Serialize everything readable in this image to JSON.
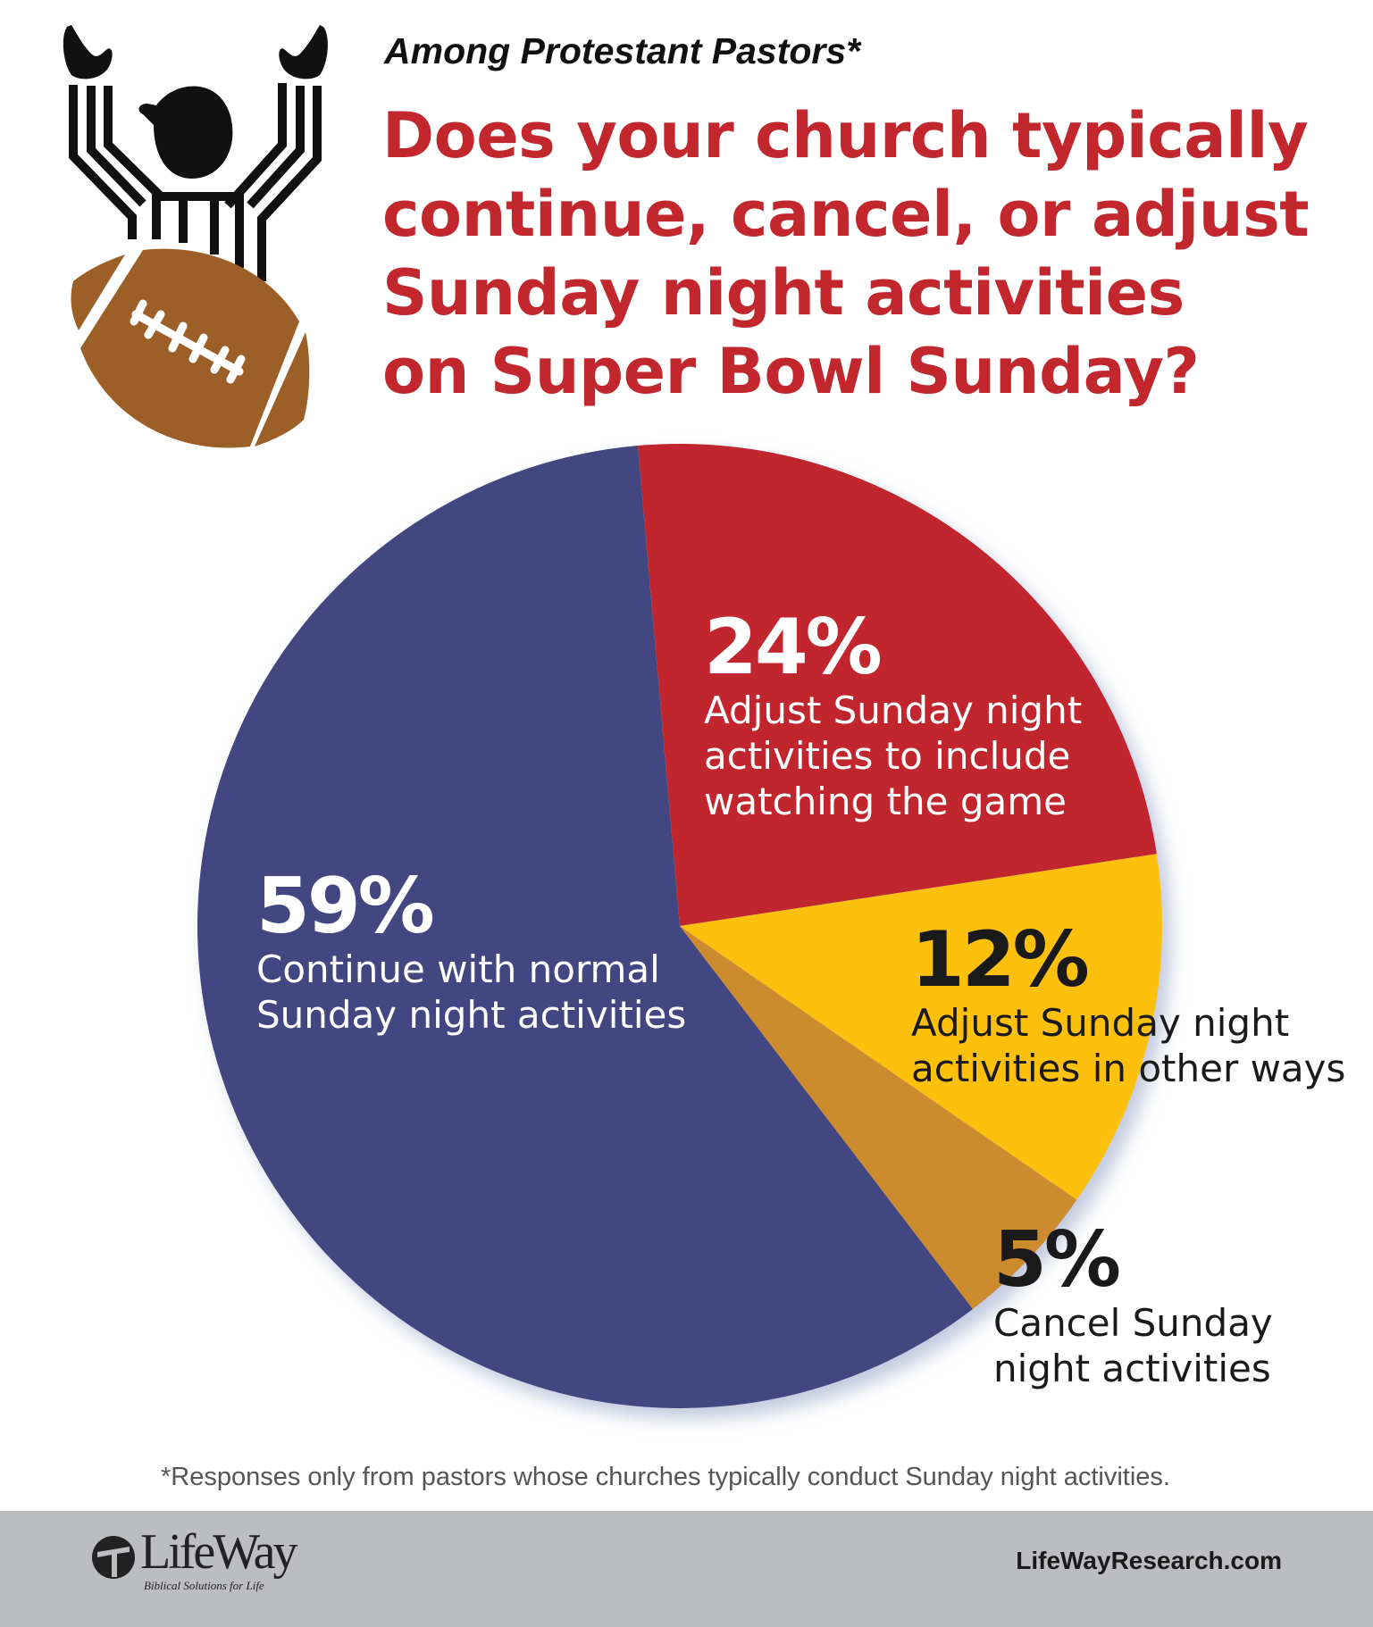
{
  "header": {
    "subtitle": "Among Protestant Pastors*",
    "title_lines": [
      "Does your church typically",
      "continue, cancel, or adjust",
      "Sunday night activities",
      "on Super Bowl Sunday?"
    ]
  },
  "chart_data": {
    "type": "pie",
    "title": "Does your church typically continue, cancel, or adjust Sunday night activities on Super Bowl Sunday?",
    "subtitle": "Among Protestant Pastors*",
    "start_angle_deg": -5,
    "slices": [
      {
        "value": 24,
        "pct_label": "24%",
        "label_lines": [
          "Adjust Sunday night",
          "activities to include",
          "watching the game"
        ],
        "color": "#c1272d"
      },
      {
        "value": 12,
        "pct_label": "12%",
        "label_lines": [
          "Adjust Sunday night",
          "activities in other ways"
        ],
        "color": "#fcc010"
      },
      {
        "value": 5,
        "pct_label": "5%",
        "label_lines": [
          "Cancel Sunday",
          "night activities"
        ],
        "color": "#cc8c2e"
      },
      {
        "value": 59,
        "pct_label": "59%",
        "label_lines": [
          "Continue with normal",
          "Sunday night activities"
        ],
        "color": "#434682"
      }
    ]
  },
  "footnote": "*Responses only from pastors whose churches typically conduct Sunday night activities.",
  "footer": {
    "logo_text": "LifeWay",
    "logo_tagline": "Biblical Solutions for Life",
    "url": "LifeWayResearch.com",
    "background": "#bcbdc1"
  }
}
